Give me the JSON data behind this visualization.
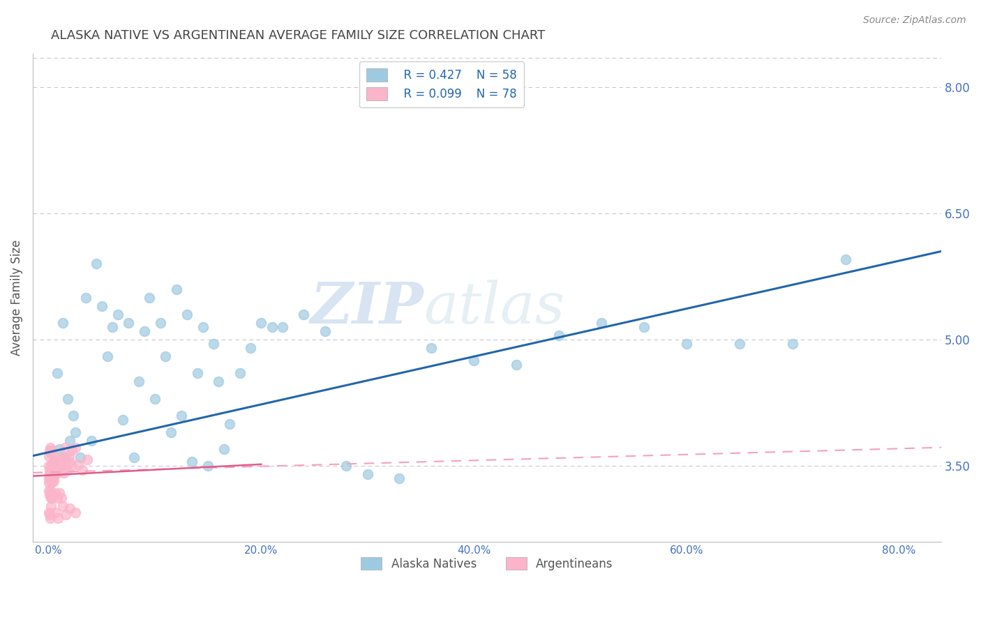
{
  "title": "ALASKA NATIVE VS ARGENTINEAN AVERAGE FAMILY SIZE CORRELATION CHART",
  "source": "Source: ZipAtlas.com",
  "xlabel_ticks": [
    "0.0%",
    "20.0%",
    "40.0%",
    "60.0%",
    "80.0%"
  ],
  "xlabel_vals": [
    0.0,
    20.0,
    40.0,
    60.0,
    80.0
  ],
  "ylabel": "Average Family Size",
  "yticks": [
    3.5,
    5.0,
    6.5,
    8.0
  ],
  "ylim": [
    2.6,
    8.4
  ],
  "xlim": [
    -1.5,
    84.0
  ],
  "watermark_zip": "ZIP",
  "watermark_atlas": "atlas",
  "legend_r1": "R = 0.427",
  "legend_n1": "N = 58",
  "legend_r2": "R = 0.099",
  "legend_n2": "N = 78",
  "legend_label1": "Alaska Natives",
  "legend_label2": "Argentineans",
  "blue_dot_color": "#9ecae1",
  "pink_dot_color": "#fbb4c9",
  "blue_line_color": "#2166ac",
  "pink_solid_color": "#e05c8a",
  "pink_dash_color": "#f4a0c0",
  "bg_color": "#ffffff",
  "grid_color": "#c8c8c8",
  "title_color": "#444444",
  "tick_color": "#4472c4",
  "alaska_x": [
    0.5,
    1.0,
    1.5,
    2.0,
    2.5,
    3.0,
    0.8,
    1.3,
    1.8,
    2.3,
    3.5,
    4.0,
    4.5,
    5.0,
    5.5,
    6.0,
    6.5,
    7.0,
    7.5,
    8.0,
    8.5,
    9.0,
    9.5,
    10.0,
    10.5,
    11.0,
    11.5,
    12.0,
    12.5,
    13.0,
    13.5,
    14.0,
    14.5,
    15.0,
    15.5,
    16.0,
    16.5,
    17.0,
    18.0,
    19.0,
    20.0,
    21.0,
    22.0,
    24.0,
    26.0,
    28.0,
    30.0,
    33.0,
    36.0,
    40.0,
    44.0,
    48.0,
    52.0,
    56.0,
    60.0,
    65.0,
    70.0,
    75.0
  ],
  "alaska_y": [
    3.55,
    3.7,
    3.6,
    3.8,
    3.9,
    3.6,
    4.6,
    5.2,
    4.3,
    4.1,
    5.5,
    3.8,
    5.9,
    5.4,
    4.8,
    5.15,
    5.3,
    4.05,
    5.2,
    3.6,
    4.5,
    5.1,
    5.5,
    4.3,
    5.2,
    4.8,
    3.9,
    5.6,
    4.1,
    5.3,
    3.55,
    4.6,
    5.15,
    3.5,
    4.95,
    4.5,
    3.7,
    4.0,
    4.6,
    4.9,
    5.2,
    5.15,
    5.15,
    5.3,
    5.1,
    3.5,
    3.4,
    3.35,
    4.9,
    4.75,
    4.7,
    5.05,
    5.2,
    5.15,
    4.95,
    4.95,
    4.95,
    5.95
  ],
  "argentina_x": [
    0.05,
    0.1,
    0.15,
    0.2,
    0.25,
    0.3,
    0.35,
    0.4,
    0.45,
    0.5,
    0.05,
    0.1,
    0.15,
    0.2,
    0.25,
    0.3,
    0.35,
    0.4,
    0.45,
    0.5,
    0.05,
    0.1,
    0.15,
    0.2,
    0.25,
    0.3,
    0.35,
    0.4,
    0.45,
    0.5,
    0.6,
    0.7,
    0.8,
    0.9,
    1.0,
    1.1,
    1.2,
    1.3,
    1.4,
    1.5,
    1.6,
    1.7,
    1.8,
    1.9,
    2.0,
    2.2,
    2.5,
    2.8,
    3.2,
    3.6,
    0.05,
    0.1,
    0.15,
    0.2,
    0.25,
    0.3,
    0.6,
    0.8,
    1.0,
    1.2,
    0.05,
    0.1,
    0.15,
    0.2,
    0.6,
    0.9,
    1.3,
    1.6,
    2.0,
    2.5,
    0.05,
    0.1,
    0.15,
    0.2,
    0.25,
    0.3,
    1.5,
    2.2
  ],
  "argentina_y": [
    3.5,
    3.45,
    3.4,
    3.5,
    3.45,
    3.4,
    3.5,
    3.55,
    3.45,
    3.5,
    3.35,
    3.4,
    3.45,
    3.38,
    3.42,
    3.35,
    3.48,
    3.42,
    3.36,
    3.55,
    3.3,
    3.35,
    3.4,
    3.32,
    3.38,
    3.3,
    3.45,
    3.35,
    3.32,
    3.42,
    3.55,
    3.48,
    3.42,
    3.58,
    3.52,
    3.45,
    3.6,
    3.5,
    3.42,
    3.55,
    3.58,
    3.52,
    3.45,
    3.62,
    3.55,
    3.5,
    3.72,
    3.52,
    3.45,
    3.58,
    3.2,
    3.15,
    3.2,
    3.12,
    3.18,
    3.12,
    3.18,
    3.12,
    3.18,
    3.12,
    2.95,
    2.92,
    2.88,
    3.02,
    2.95,
    2.88,
    3.02,
    2.92,
    3.0,
    2.95,
    3.62,
    3.68,
    3.72,
    3.65,
    3.68,
    3.65,
    3.72,
    3.68
  ],
  "blue_trendline_start_y": 3.62,
  "blue_trendline_end_y": 6.05,
  "pink_solid_start_y": 3.38,
  "pink_solid_end_y": 3.52,
  "pink_solid_end_x": 20.0,
  "pink_dash_start_y": 3.42,
  "pink_dash_end_y": 3.72
}
